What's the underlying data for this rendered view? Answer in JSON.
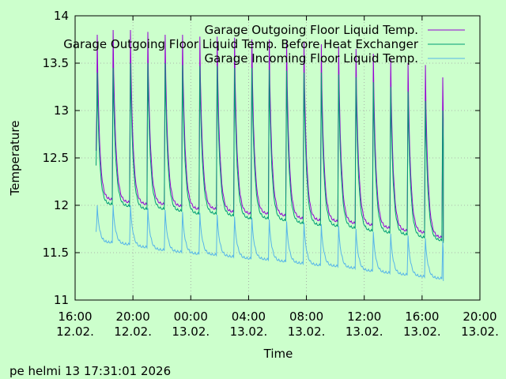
{
  "chart_data": {
    "type": "line",
    "xlabel": "Time",
    "ylabel": "Temperature",
    "ylim": [
      11,
      14
    ],
    "xlim": [
      "2026-02-12 16:00",
      "2026-02-13 20:00"
    ],
    "grid": true,
    "legend_position": "top-right",
    "background_color": "#ccffcc",
    "y_ticks": [
      "11",
      "11.5",
      "12",
      "12.5",
      "13",
      "13.5",
      "14"
    ],
    "x_ticks": [
      {
        "time": "16:00",
        "date": "12.02."
      },
      {
        "time": "20:00",
        "date": "12.02."
      },
      {
        "time": "00:00",
        "date": "13.02."
      },
      {
        "time": "04:00",
        "date": "13.02."
      },
      {
        "time": "08:00",
        "date": "13.02."
      },
      {
        "time": "12:00",
        "date": "13.02."
      },
      {
        "time": "16:00",
        "date": "13.02."
      },
      {
        "time": "20:00",
        "date": "13.02."
      }
    ],
    "cycle_peaks_hour": [
      17.5,
      18.6,
      19.8,
      21.0,
      22.2,
      23.4,
      24.6,
      25.8,
      27.0,
      28.2,
      29.4,
      30.6,
      31.8,
      33.0,
      34.2,
      35.4,
      36.6,
      37.8,
      39.0,
      40.2,
      41.4
    ],
    "series": [
      {
        "name": "Garage Outgoing Floor Liquid Temp.",
        "color": "#9400d3",
        "peak_values": [
          13.8,
          13.85,
          13.85,
          13.83,
          13.8,
          13.8,
          13.78,
          13.78,
          13.77,
          13.75,
          13.75,
          13.73,
          13.72,
          13.7,
          13.68,
          13.65,
          13.6,
          13.55,
          13.5,
          13.48,
          13.35
        ],
        "trough_values": [
          12.05,
          12.02,
          12.0,
          12.0,
          11.98,
          11.95,
          11.95,
          11.92,
          11.9,
          11.9,
          11.88,
          11.85,
          11.83,
          11.82,
          11.8,
          11.78,
          11.75,
          11.72,
          11.7,
          11.65,
          11.62
        ]
      },
      {
        "name": "Garage Outgoing Floor Liquid Temp. Before Heat Exchanger",
        "color": "#009e73",
        "peak_values": [
          13.4,
          13.45,
          13.5,
          13.5,
          13.5,
          13.48,
          13.47,
          13.47,
          13.45,
          13.45,
          13.43,
          13.42,
          13.4,
          13.4,
          13.38,
          13.35,
          13.3,
          13.25,
          13.2,
          13.1,
          13.0
        ],
        "trough_values": [
          12.0,
          11.98,
          11.95,
          11.95,
          11.93,
          11.9,
          11.9,
          11.88,
          11.85,
          11.85,
          11.83,
          11.8,
          11.78,
          11.77,
          11.75,
          11.72,
          11.7,
          11.68,
          11.65,
          11.62,
          11.6
        ]
      },
      {
        "name": "Garage Incoming Floor Liquid Temp.",
        "color": "#56b4e9",
        "peak_values": [
          12.0,
          12.0,
          12.0,
          11.97,
          11.95,
          11.93,
          11.92,
          11.9,
          11.88,
          11.87,
          11.85,
          11.83,
          11.82,
          11.8,
          11.78,
          11.75,
          11.72,
          11.7,
          11.68,
          11.65,
          11.62
        ],
        "trough_values": [
          11.6,
          11.58,
          11.55,
          11.52,
          11.5,
          11.48,
          11.47,
          11.45,
          11.43,
          11.42,
          11.4,
          11.38,
          11.36,
          11.35,
          11.33,
          11.3,
          11.28,
          11.26,
          11.24,
          11.22,
          11.2
        ]
      }
    ]
  },
  "footer": {
    "timestamp": "pe helmi 13 17:31:01 2026"
  }
}
